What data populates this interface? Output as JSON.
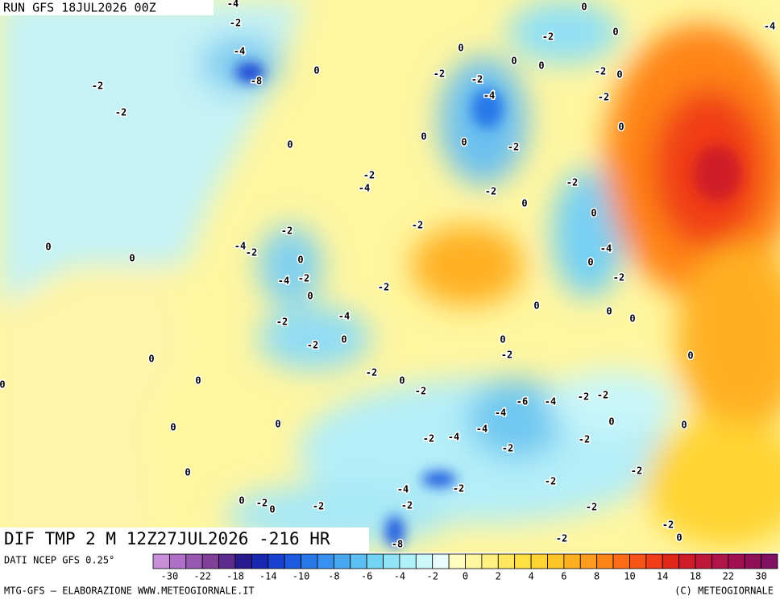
{
  "header": {
    "run": "RUN GFS 18JUL2026 00Z"
  },
  "map": {
    "title": "DIF TMP 2 M 12Z27JUL2026 -216 HR",
    "contour_labels": [
      -4,
      -2,
      -4,
      -8,
      -2,
      -2,
      0,
      0,
      -2,
      -4,
      0,
      0,
      -2,
      -4,
      -2,
      0,
      -4,
      -2,
      0,
      -2,
      -2,
      -4,
      0,
      -2,
      0,
      0,
      0,
      -2,
      0,
      -2,
      0,
      0,
      0,
      -2,
      -4,
      -4,
      -2,
      -4,
      -6,
      -4,
      -2,
      -2,
      0,
      -2,
      0,
      -2,
      -2,
      -2,
      -4,
      -2,
      0,
      -2,
      0,
      -2,
      -2,
      -2,
      0,
      -2,
      -8,
      0,
      -2,
      -2,
      -4,
      0,
      0,
      -2,
      -2,
      0,
      -2,
      -2,
      0,
      -4,
      0,
      -2,
      0,
      0,
      0,
      -2,
      0,
      0,
      -2,
      0,
      0,
      0,
      0,
      -2,
      0,
      -2,
      0,
      -4
    ]
  },
  "legend": {
    "source": "DATI NCEP GFS 0.25°",
    "colors": [
      "#c890d8",
      "#b070c8",
      "#9858b0",
      "#804098",
      "#5a2a8c",
      "#2a1a90",
      "#1828b0",
      "#1840d0",
      "#1c5ae0",
      "#2878e8",
      "#3890f0",
      "#48a8f0",
      "#5cc0f4",
      "#74d4f4",
      "#90e4f6",
      "#b0f0f8",
      "#ccf8fa",
      "#e8fcfc",
      "#fffcc0",
      "#fff6a0",
      "#fff080",
      "#ffe860",
      "#ffe040",
      "#ffd430",
      "#ffc428",
      "#ffb020",
      "#ff9c20",
      "#ff8418",
      "#ff6c18",
      "#f85418",
      "#f03c18",
      "#e02818",
      "#d01c28",
      "#c01838",
      "#b01448",
      "#a01050",
      "#901058",
      "#801060"
    ],
    "ticks": [
      -30,
      -22,
      -18,
      -14,
      -10,
      -8,
      -6,
      -4,
      -2,
      0,
      2,
      4,
      6,
      8,
      10,
      14,
      18,
      22,
      30
    ]
  },
  "footer": {
    "left": "MTG-GFS — ELABORAZIONE WWW.METEOGIORNALE.IT",
    "right": "(C) METEOGIORNALE"
  }
}
